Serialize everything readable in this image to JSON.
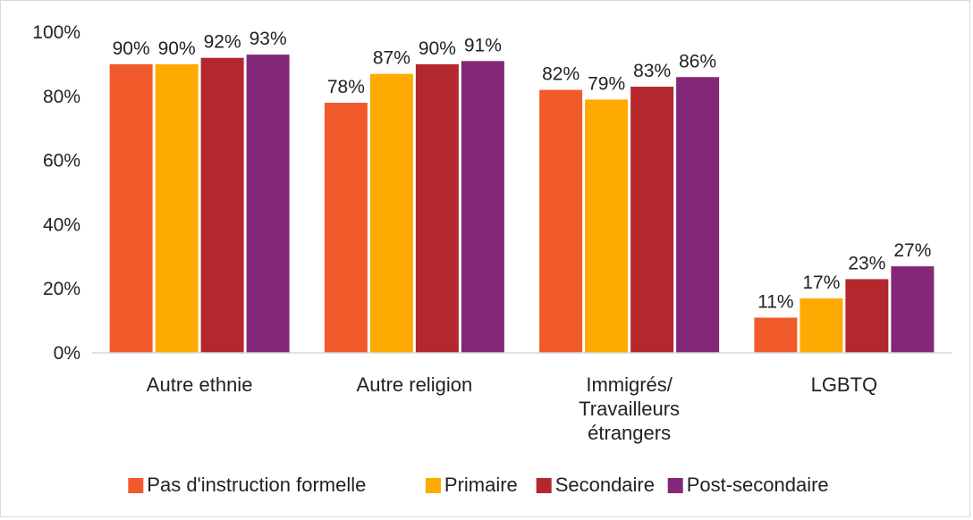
{
  "chart_data": {
    "type": "bar",
    "title": "",
    "xlabel": "",
    "ylabel": "",
    "categories": [
      [
        "Autre ethnie"
      ],
      [
        "Autre religion"
      ],
      [
        "Immigrés/",
        "Travailleurs",
        "étrangers"
      ],
      [
        "LGBTQ"
      ]
    ],
    "series": [
      {
        "name": "Pas d'instruction formelle",
        "color": "#F15A2B",
        "values": [
          90,
          78,
          82,
          11
        ]
      },
      {
        "name": "Primaire",
        "color": "#FFAA00",
        "values": [
          90,
          87,
          79,
          17
        ]
      },
      {
        "name": "Secondaire",
        "color": "#B3282D",
        "values": [
          92,
          90,
          83,
          23
        ]
      },
      {
        "name": "Post-secondaire",
        "color": "#832878",
        "values": [
          93,
          91,
          86,
          27
        ]
      }
    ],
    "ylim": [
      0,
      100
    ],
    "yticks": [
      0,
      20,
      40,
      60,
      80,
      100
    ],
    "tick_suffix": "%",
    "grid": false,
    "legend_position": "bottom",
    "data_labels": true
  }
}
